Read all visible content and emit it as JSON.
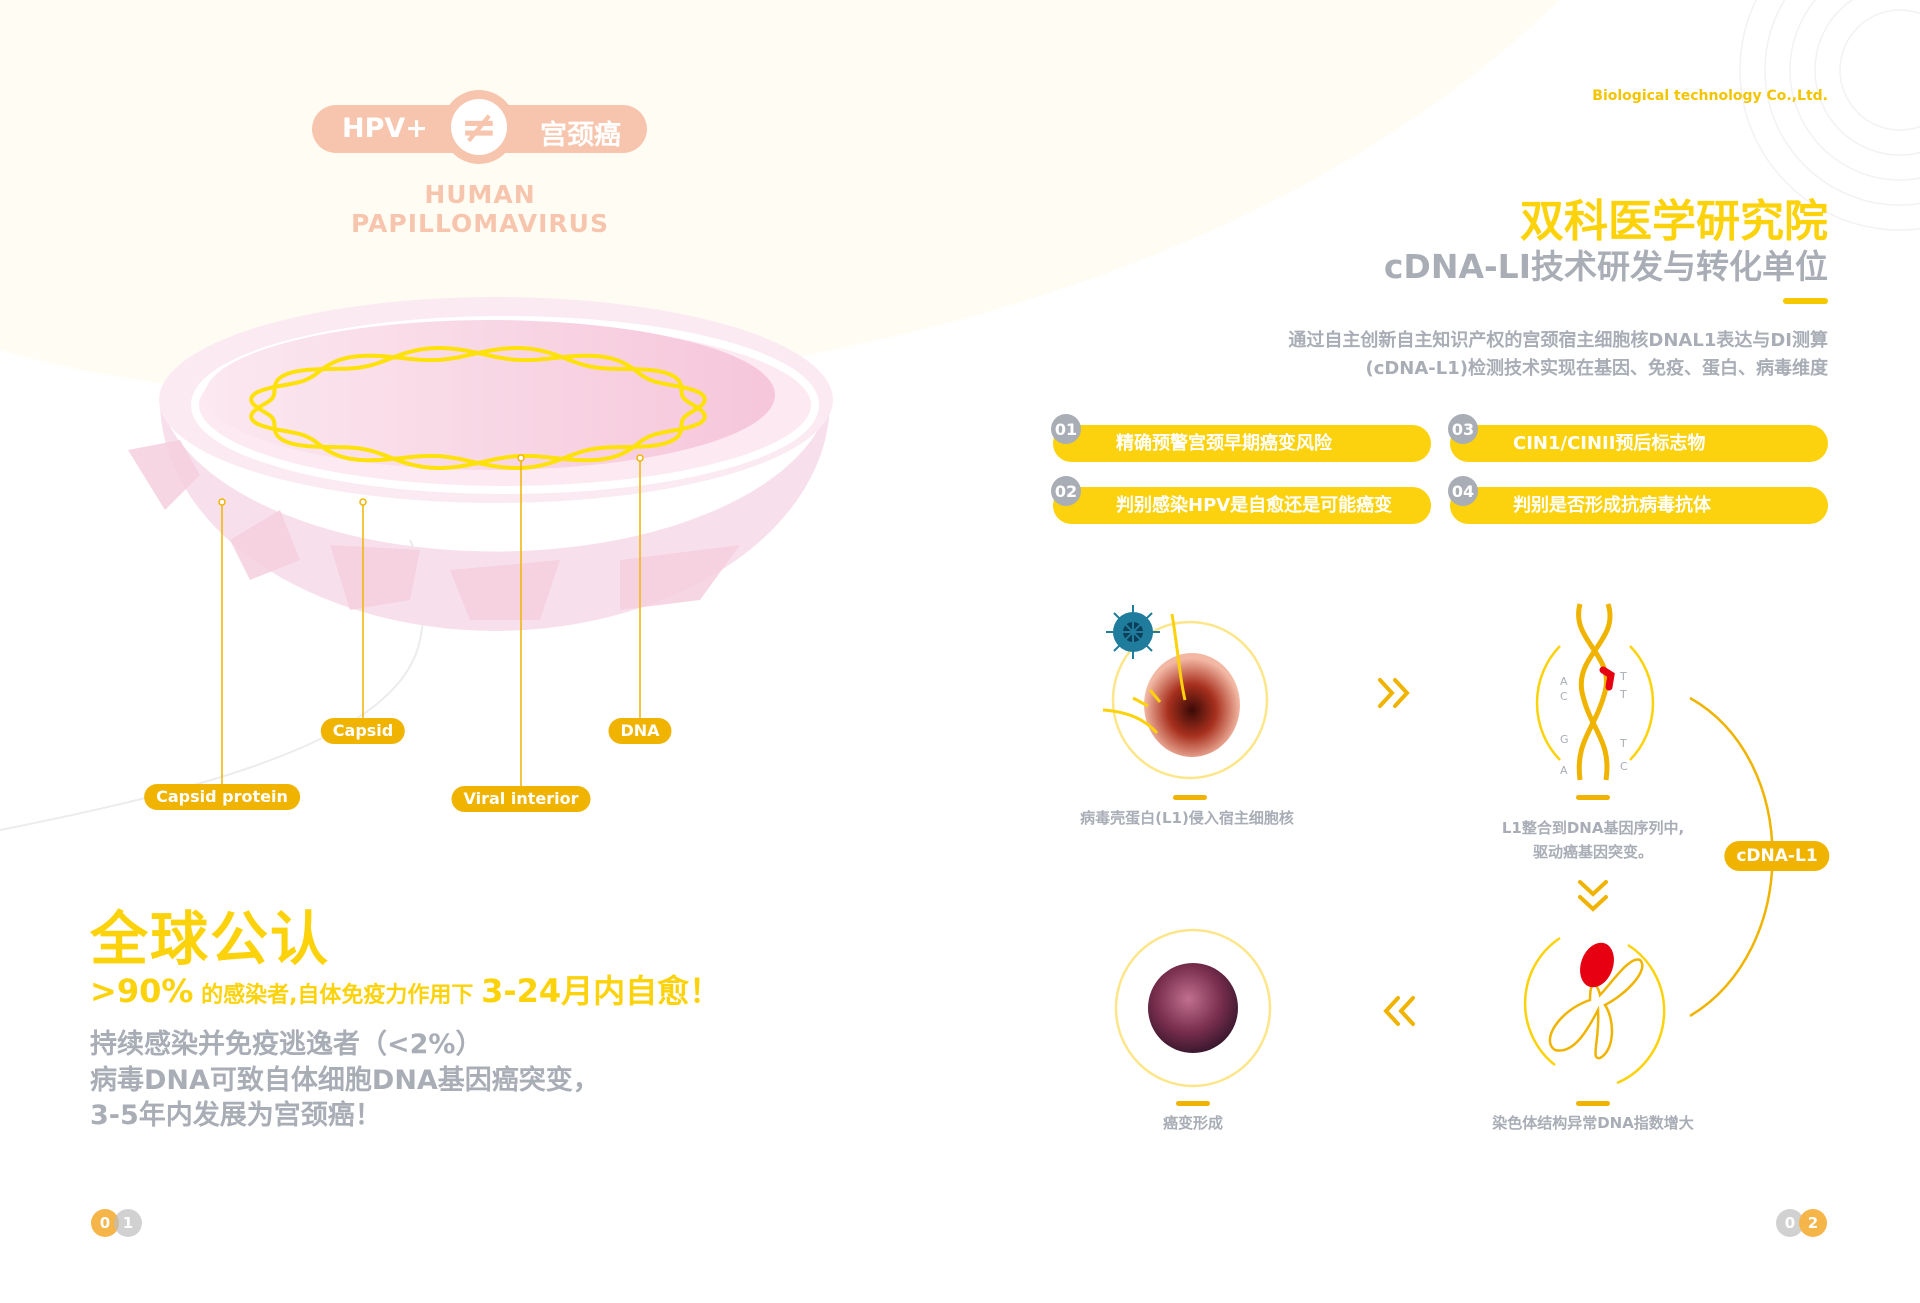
{
  "colors": {
    "yellow": "#fcd20a",
    "tag": "#f0b400",
    "peach": "#f7c5ad",
    "grey": "#a9adb6",
    "cream": "#fffdf3"
  },
  "left": {
    "badge": {
      "left": "HPV+",
      "symbol": "≠",
      "right": "宫颈癌"
    },
    "subtitle": "HUMAN  PAPILLOMAVIRUS",
    "labels": {
      "capsid": "Capsid",
      "dna": "DNA",
      "capsid_protein": "Capsid protein",
      "viral_interior": "Viral interior"
    },
    "headline": "全球公认",
    "stat": {
      "pct": ">90%",
      "mid": " 的感染者,自体免疫力作用下 ",
      "end": "3-24月内自愈！"
    },
    "lines": [
      "持续感染并免疫逃逸者（<2%）",
      "病毒DNA可致自体细胞DNA基因癌突变，",
      "3-5年内发展为宫颈癌！"
    ],
    "page": [
      "0",
      "1"
    ]
  },
  "right": {
    "company": "Biological  technology Co.,Ltd.",
    "title": "双科医学研究院",
    "subtitle": "cDNA-LI技术研发与转化单位",
    "desc": [
      "通过自主创新自主知识产权的宫颈宿主细胞核DNAL1表达与DI测算",
      "(cDNA-L1)检测技术实现在基因、免疫、蛋白、病毒维度"
    ],
    "features": [
      {
        "num": "01",
        "text": "精确预警宫颈早期癌变风险"
      },
      {
        "num": "02",
        "text": "判别感染HPV是自愈还是可能癌变"
      },
      {
        "num": "03",
        "text": "CIN1/CINII预后标志物"
      },
      {
        "num": "04",
        "text": "判别是否形成抗病毒抗体"
      }
    ],
    "steps": {
      "s1": "病毒壳蛋白(L1)侵入宿主细胞核",
      "s2": [
        "L1整合到DNA基因序列中,",
        "驱动癌基因突变。"
      ],
      "s3": "染色体结构异常DNA指数增大",
      "s4": "癌变形成",
      "cycle": "cDNA-L1",
      "bases_left": [
        "A",
        "C",
        "G",
        "A"
      ],
      "bases_right": [
        "T",
        "T",
        "T",
        "C"
      ]
    },
    "page": [
      "0",
      "2"
    ]
  }
}
